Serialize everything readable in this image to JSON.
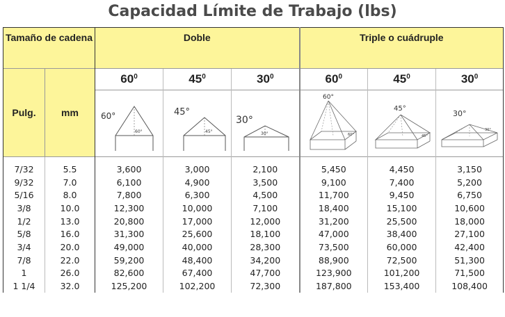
{
  "title": "Capacidad Límite de Trabajo (lbs)",
  "header": {
    "chain_size": "Tamaño de cadena",
    "double": "Doble",
    "triple": "Triple o cuádruple",
    "unit_in": "Pulg.",
    "unit_mm": "mm"
  },
  "angles": {
    "d60": "60",
    "d45": "45",
    "d30": "30",
    "t60": "60",
    "t45": "45",
    "t30": "30",
    "degree_mark": "0"
  },
  "diagram_labels": {
    "d60_big": "60°",
    "d60_small": "60°",
    "d45_big": "45°",
    "d45_small": "45°",
    "d30_big": "30°",
    "d30_small": "30°",
    "t60_big": "60°",
    "t60_small": "60°",
    "t45_big": "45°",
    "t45_small": "45°",
    "t30_big": "30°",
    "t30_small": "30°"
  },
  "rows": [
    {
      "in": "7/32",
      "mm": "5.5",
      "d60": "3,600",
      "d45": "3,000",
      "d30": "2,100",
      "t60": "5,450",
      "t45": "4,450",
      "t30": "3,150"
    },
    {
      "in": "9/32",
      "mm": "7.0",
      "d60": "6,100",
      "d45": "4,900",
      "d30": "3,500",
      "t60": "9,100",
      "t45": "7,400",
      "t30": "5,200"
    },
    {
      "in": "5/16",
      "mm": "8.0",
      "d60": "7,800",
      "d45": "6,300",
      "d30": "4,500",
      "t60": "11,700",
      "t45": "9,450",
      "t30": "6,750"
    },
    {
      "in": "3/8",
      "mm": "10.0",
      "d60": "12,300",
      "d45": "10,000",
      "d30": "7,100",
      "t60": "18,400",
      "t45": "15,100",
      "t30": "10,600"
    },
    {
      "in": "1/2",
      "mm": "13.0",
      "d60": "20,800",
      "d45": "17,000",
      "d30": "12,000",
      "t60": "31,200",
      "t45": "25,500",
      "t30": "18,000"
    },
    {
      "in": "5/8",
      "mm": "16.0",
      "d60": "31,300",
      "d45": "25,600",
      "d30": "18,100",
      "t60": "47,000",
      "t45": "38,400",
      "t30": "27,100"
    },
    {
      "in": "3/4",
      "mm": "20.0",
      "d60": "49,000",
      "d45": "40,000",
      "d30": "28,300",
      "t60": "73,500",
      "t45": "60,000",
      "t30": "42,400"
    },
    {
      "in": "7/8",
      "mm": "22.0",
      "d60": "59,200",
      "d45": "48,400",
      "d30": "34,200",
      "t60": "88,900",
      "t45": "72,500",
      "t30": "51,300"
    },
    {
      "in": "1",
      "mm": "26.0",
      "d60": "82,600",
      "d45": "67,400",
      "d30": "47,700",
      "t60": "123,900",
      "t45": "101,200",
      "t30": "71,500"
    },
    {
      "in": "1 1/4",
      "mm": "32.0",
      "d60": "125,200",
      "d45": "102,200",
      "d30": "72,300",
      "t60": "187,800",
      "t45": "153,400",
      "t30": "108,400"
    }
  ],
  "colors": {
    "header_yellow": "#fdf59a",
    "title_gray": "#4a4a4a"
  }
}
